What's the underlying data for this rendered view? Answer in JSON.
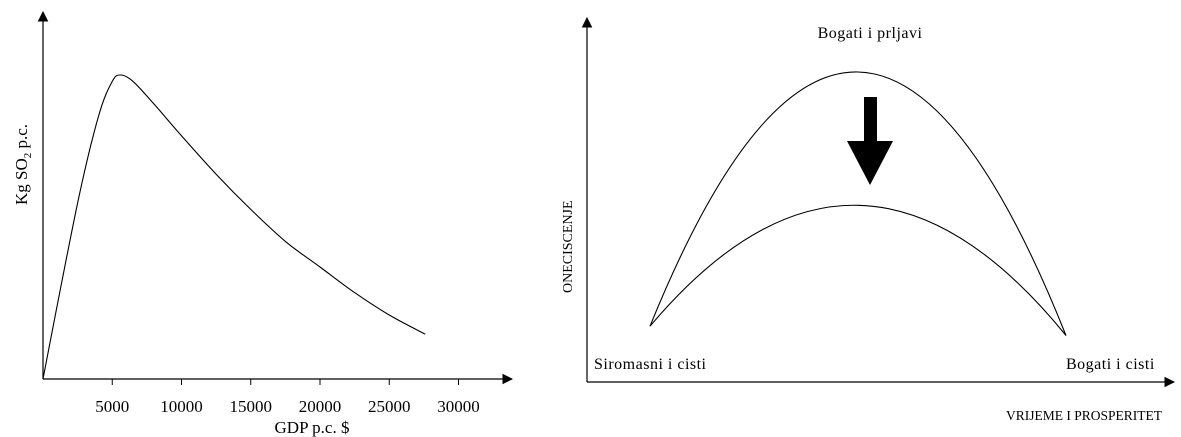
{
  "chart_data": [
    {
      "type": "line",
      "title": "",
      "xlabel": "GDP p.c. $",
      "ylabel_text": "Kg SO",
      "ylabel_sub": "2",
      "ylabel_tail": " p.c.",
      "xlim": [
        0,
        32000
      ],
      "x_ticks": [
        "5000",
        "10000",
        "15000",
        "20000",
        "25000",
        "30000"
      ],
      "x_tick_values": [
        5000,
        10000,
        15000,
        20000,
        25000,
        30000
      ],
      "y_ticks": [],
      "series": [
        {
          "x": [
            0,
            2500,
            4000,
            5000,
            5600,
            6500,
            8000,
            10000,
            12500,
            15000,
            17500,
            20000,
            22500,
            25000,
            27600
          ],
          "y": [
            0,
            0.55,
            0.82,
            0.93,
            0.95,
            0.93,
            0.86,
            0.76,
            0.64,
            0.53,
            0.43,
            0.35,
            0.27,
            0.2,
            0.14
          ]
        }
      ]
    },
    {
      "type": "line",
      "title": "",
      "xlabel": "VRIJEME I PROSPERITET",
      "ylabel": "ONECISCENJE",
      "labels": {
        "top": "Bogati i prljavi",
        "left": "Siromasni i cisti",
        "right": "Bogati i cisti"
      },
      "series": [
        {
          "x": [
            0,
            0.5,
            1
          ],
          "y": [
            0.18,
            1.0,
            0.15
          ]
        },
        {
          "x": [
            0,
            0.5,
            1
          ],
          "y": [
            0.18,
            0.57,
            0.15
          ]
        }
      ],
      "annotation": "down-arrow"
    }
  ]
}
